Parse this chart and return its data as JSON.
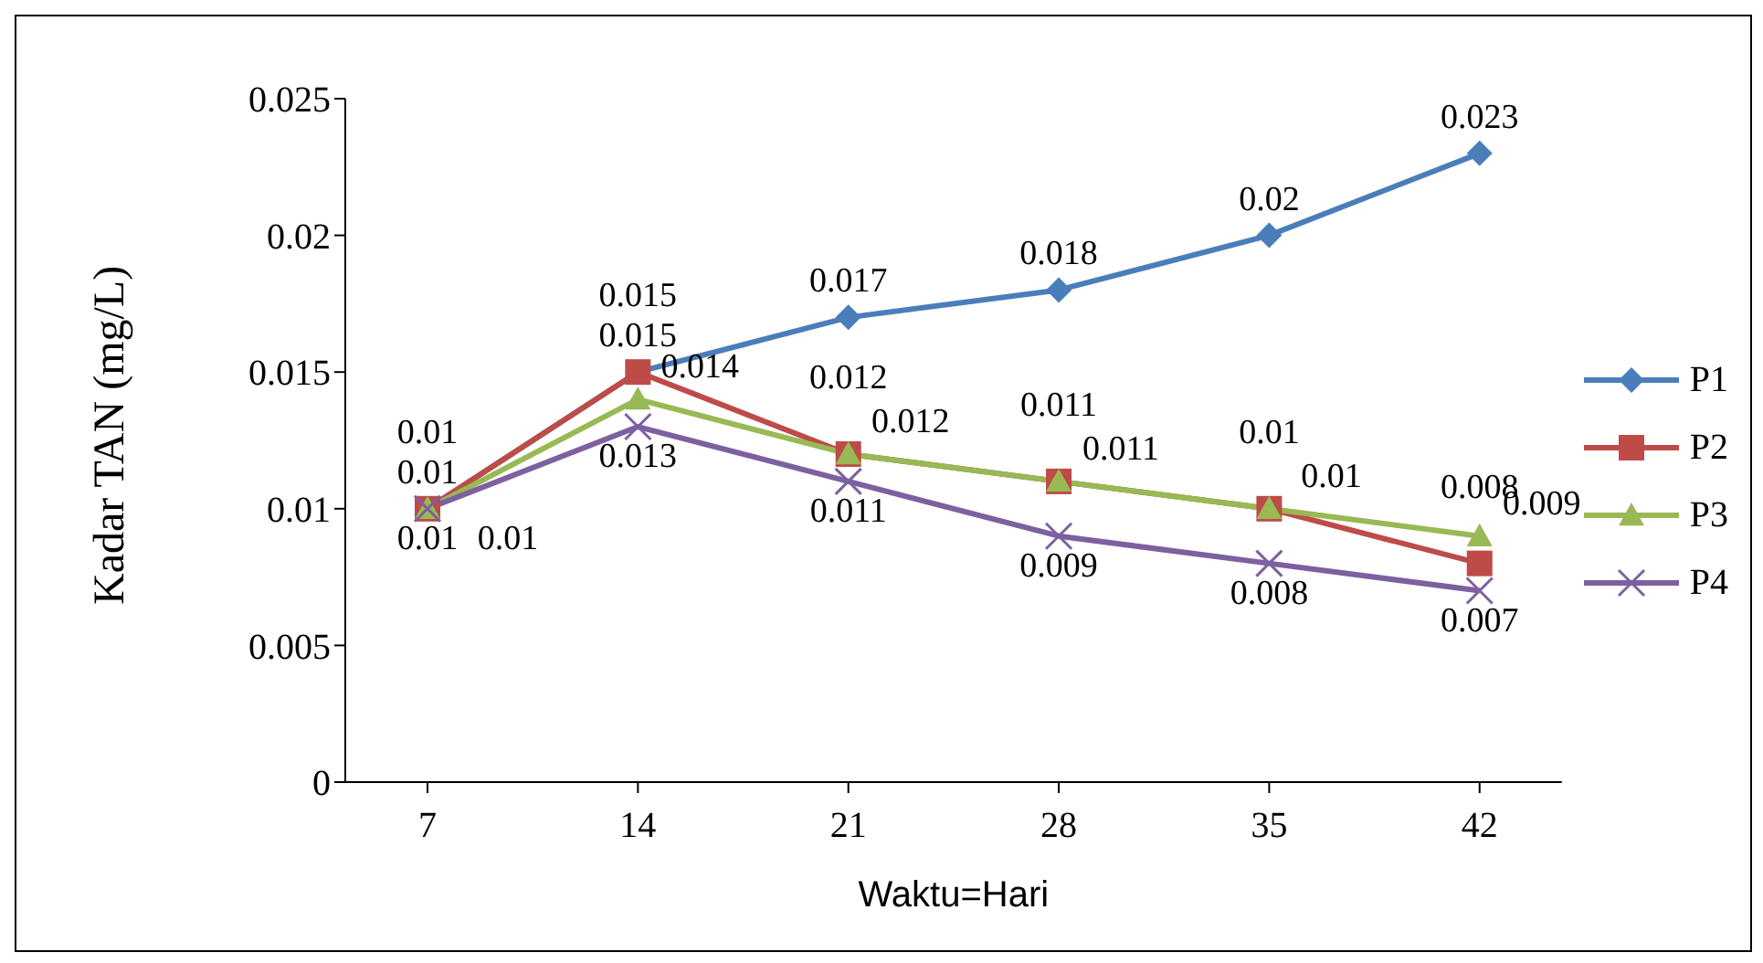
{
  "chart_data": {
    "type": "line",
    "xlabel": "Waktu=Hari",
    "ylabel": "Kadar TAN (mg/L)",
    "categories": [
      "7",
      "14",
      "21",
      "28",
      "35",
      "42"
    ],
    "ylim": [
      0,
      0.025
    ],
    "yticks": [
      0,
      0.005,
      0.01,
      0.015,
      0.02,
      0.025
    ],
    "grid": false,
    "legend": "right",
    "data_labels": true,
    "series": [
      {
        "name": "P1",
        "color": "#4a7ebb",
        "marker": "diamond",
        "values": [
          0.01,
          0.015,
          0.017,
          0.018,
          0.02,
          0.023
        ]
      },
      {
        "name": "P2",
        "color": "#be4b48",
        "marker": "square",
        "values": [
          0.01,
          0.015,
          0.012,
          0.011,
          0.01,
          0.008
        ]
      },
      {
        "name": "P3",
        "color": "#98b954",
        "marker": "triangle",
        "values": [
          0.01,
          0.014,
          0.012,
          0.011,
          0.01,
          0.009
        ]
      },
      {
        "name": "P4",
        "color": "#7d60a0",
        "marker": "cross",
        "values": [
          0.01,
          0.013,
          0.011,
          0.009,
          0.008,
          0.007
        ]
      }
    ]
  }
}
